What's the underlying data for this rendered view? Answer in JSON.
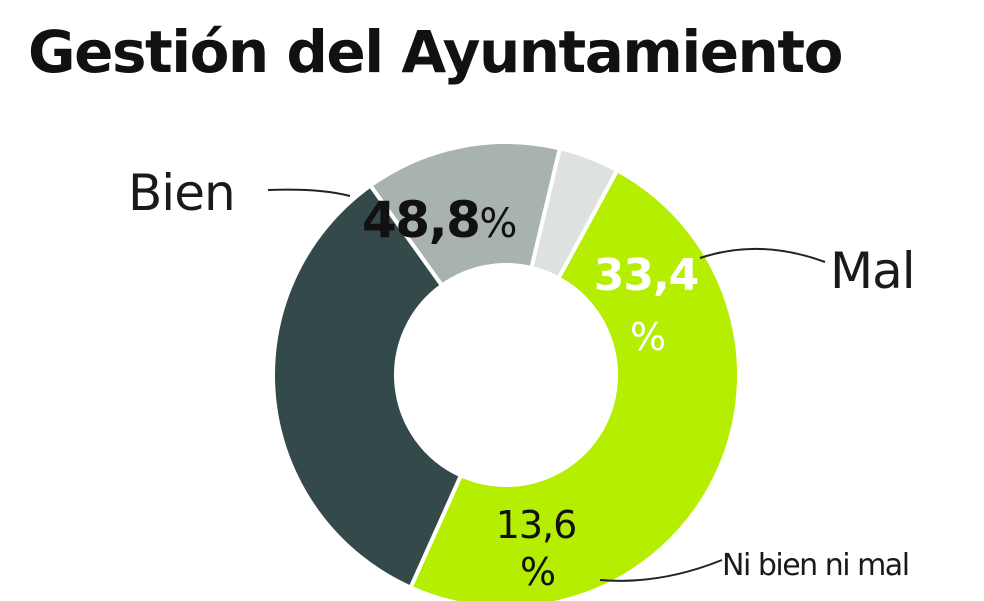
{
  "title": "Gestión del Ayuntamiento",
  "chart_data": {
    "type": "pie",
    "title": "Gestión del Ayuntamiento",
    "slices": [
      {
        "label": "Bien",
        "value": 48.8,
        "display_number": "48,8",
        "display_unit": "%",
        "color": "#b5ee00",
        "text_color": "#111111"
      },
      {
        "label": "Mal",
        "value": 33.4,
        "display_number": "33,4",
        "display_unit": "%",
        "color": "#34494a",
        "text_color": "#ffffff"
      },
      {
        "label": "Ni bien ni mal",
        "value": 13.6,
        "display_number": "13,6",
        "display_unit": "%",
        "color": "#a8b2ae",
        "text_color": "#111111"
      },
      {
        "label": "",
        "value": 4.2,
        "display_number": "",
        "display_unit": "",
        "color": "#dde2df",
        "text_color": "#111111"
      }
    ]
  }
}
